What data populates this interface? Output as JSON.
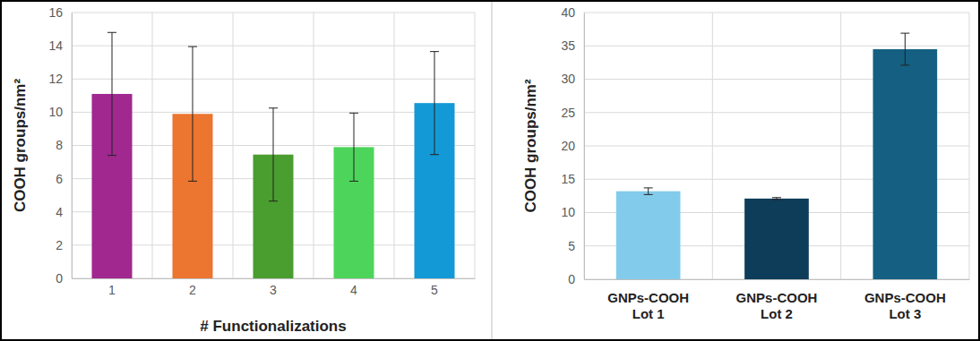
{
  "chart_data": [
    {
      "type": "bar",
      "x_label": "# Functionalizations",
      "y_label": "COOH groups/nm²",
      "categories": [
        "1",
        "2",
        "3",
        "4",
        "5"
      ],
      "values": [
        11.1,
        9.9,
        7.45,
        7.9,
        10.55
      ],
      "errors": [
        3.7,
        4.05,
        2.8,
        2.05,
        3.1
      ],
      "colors": [
        "#a0288e",
        "#ec7530",
        "#4a9d2f",
        "#4dd55b",
        "#1399d6"
      ],
      "ylim": [
        0,
        16
      ],
      "yticks": [
        0,
        2,
        4,
        6,
        8,
        10,
        12,
        14,
        16
      ],
      "grid": true
    },
    {
      "type": "bar",
      "y_label": "COOH groups/nm²",
      "categories": [
        "GNPs-COOH Lot 1",
        "GNPs-COOH Lot 2",
        "GNPs-COOH Lot 3"
      ],
      "values": [
        13.2,
        12.1,
        34.5
      ],
      "errors": [
        0.5,
        0.15,
        2.4
      ],
      "colors": [
        "#83cbeb",
        "#0e3d5a",
        "#156082"
      ],
      "ylim": [
        0,
        40
      ],
      "yticks": [
        0,
        5,
        10,
        15,
        20,
        25,
        30,
        35,
        40
      ],
      "grid": true
    }
  ]
}
